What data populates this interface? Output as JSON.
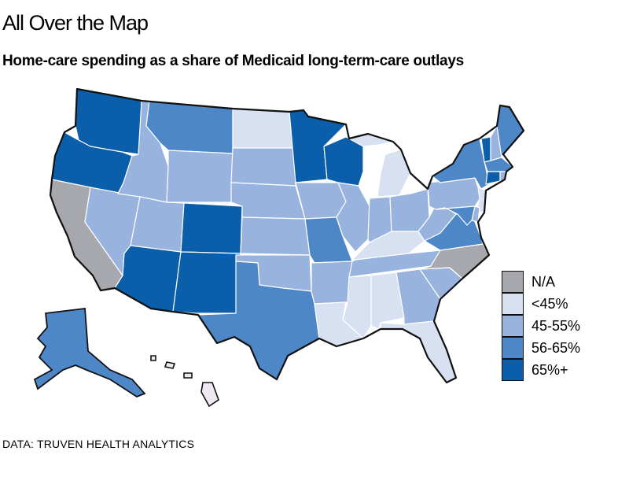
{
  "header": {
    "kicker": "All Over the Map",
    "subtitle": "Home-care spending as a share of Medicaid long-term-care outlays"
  },
  "footer": {
    "source": "DATA: TRUVEN HEALTH ANALYTICS"
  },
  "colors": {
    "na": "#a7a8ad",
    "lt45": "#d8e1f2",
    "c45_55": "#98b3de",
    "c56_65": "#4e87c8",
    "c65plus": "#0a5eaa",
    "hawaii": "#efe8f3",
    "stroke": "#ffffff",
    "outline": "#111111"
  },
  "legend": [
    {
      "label": "N/A",
      "key": "na"
    },
    {
      "label": "<45%",
      "key": "lt45"
    },
    {
      "label": "45-55%",
      "key": "c45_55"
    },
    {
      "label": "56-65%",
      "key": "c56_65"
    },
    {
      "label": "65%+",
      "key": "c65plus"
    }
  ],
  "map_data": {
    "WA": "c65plus",
    "OR": "c65plus",
    "CA": "na",
    "NV": "c45_55",
    "ID": "c45_55",
    "MT": "c56_65",
    "WY": "c45_55",
    "UT": "c45_55",
    "AZ": "c65plus",
    "CO": "c65plus",
    "NM": "c65plus",
    "ND": "lt45",
    "SD": "c45_55",
    "NE": "c45_55",
    "KS": "c45_55",
    "OK": "c45_55",
    "TX": "c56_65",
    "MN": "c65plus",
    "IA": "c45_55",
    "MO": "c56_65",
    "AR": "c45_55",
    "LA": "lt45",
    "WI": "c65plus",
    "IL": "c45_55",
    "MI": "lt45",
    "IN": "c45_55",
    "OH": "c45_55",
    "KY": "lt45",
    "TN": "c45_55",
    "MS": "lt45",
    "AL": "lt45",
    "GA": "c45_55",
    "FL": "lt45",
    "SC": "c45_55",
    "NC": "na",
    "VA": "c56_65",
    "WV": "c45_55",
    "PA": "c45_55",
    "NY": "c56_65",
    "VT": "c65plus",
    "NH": "c45_55",
    "ME": "c56_65",
    "MA": "c56_65",
    "CT": "c65plus",
    "RI": "c45_55",
    "NJ": "lt45",
    "DE": "c45_55",
    "MD": "c56_65",
    "AK": "c56_65",
    "HI": "hawaii"
  }
}
